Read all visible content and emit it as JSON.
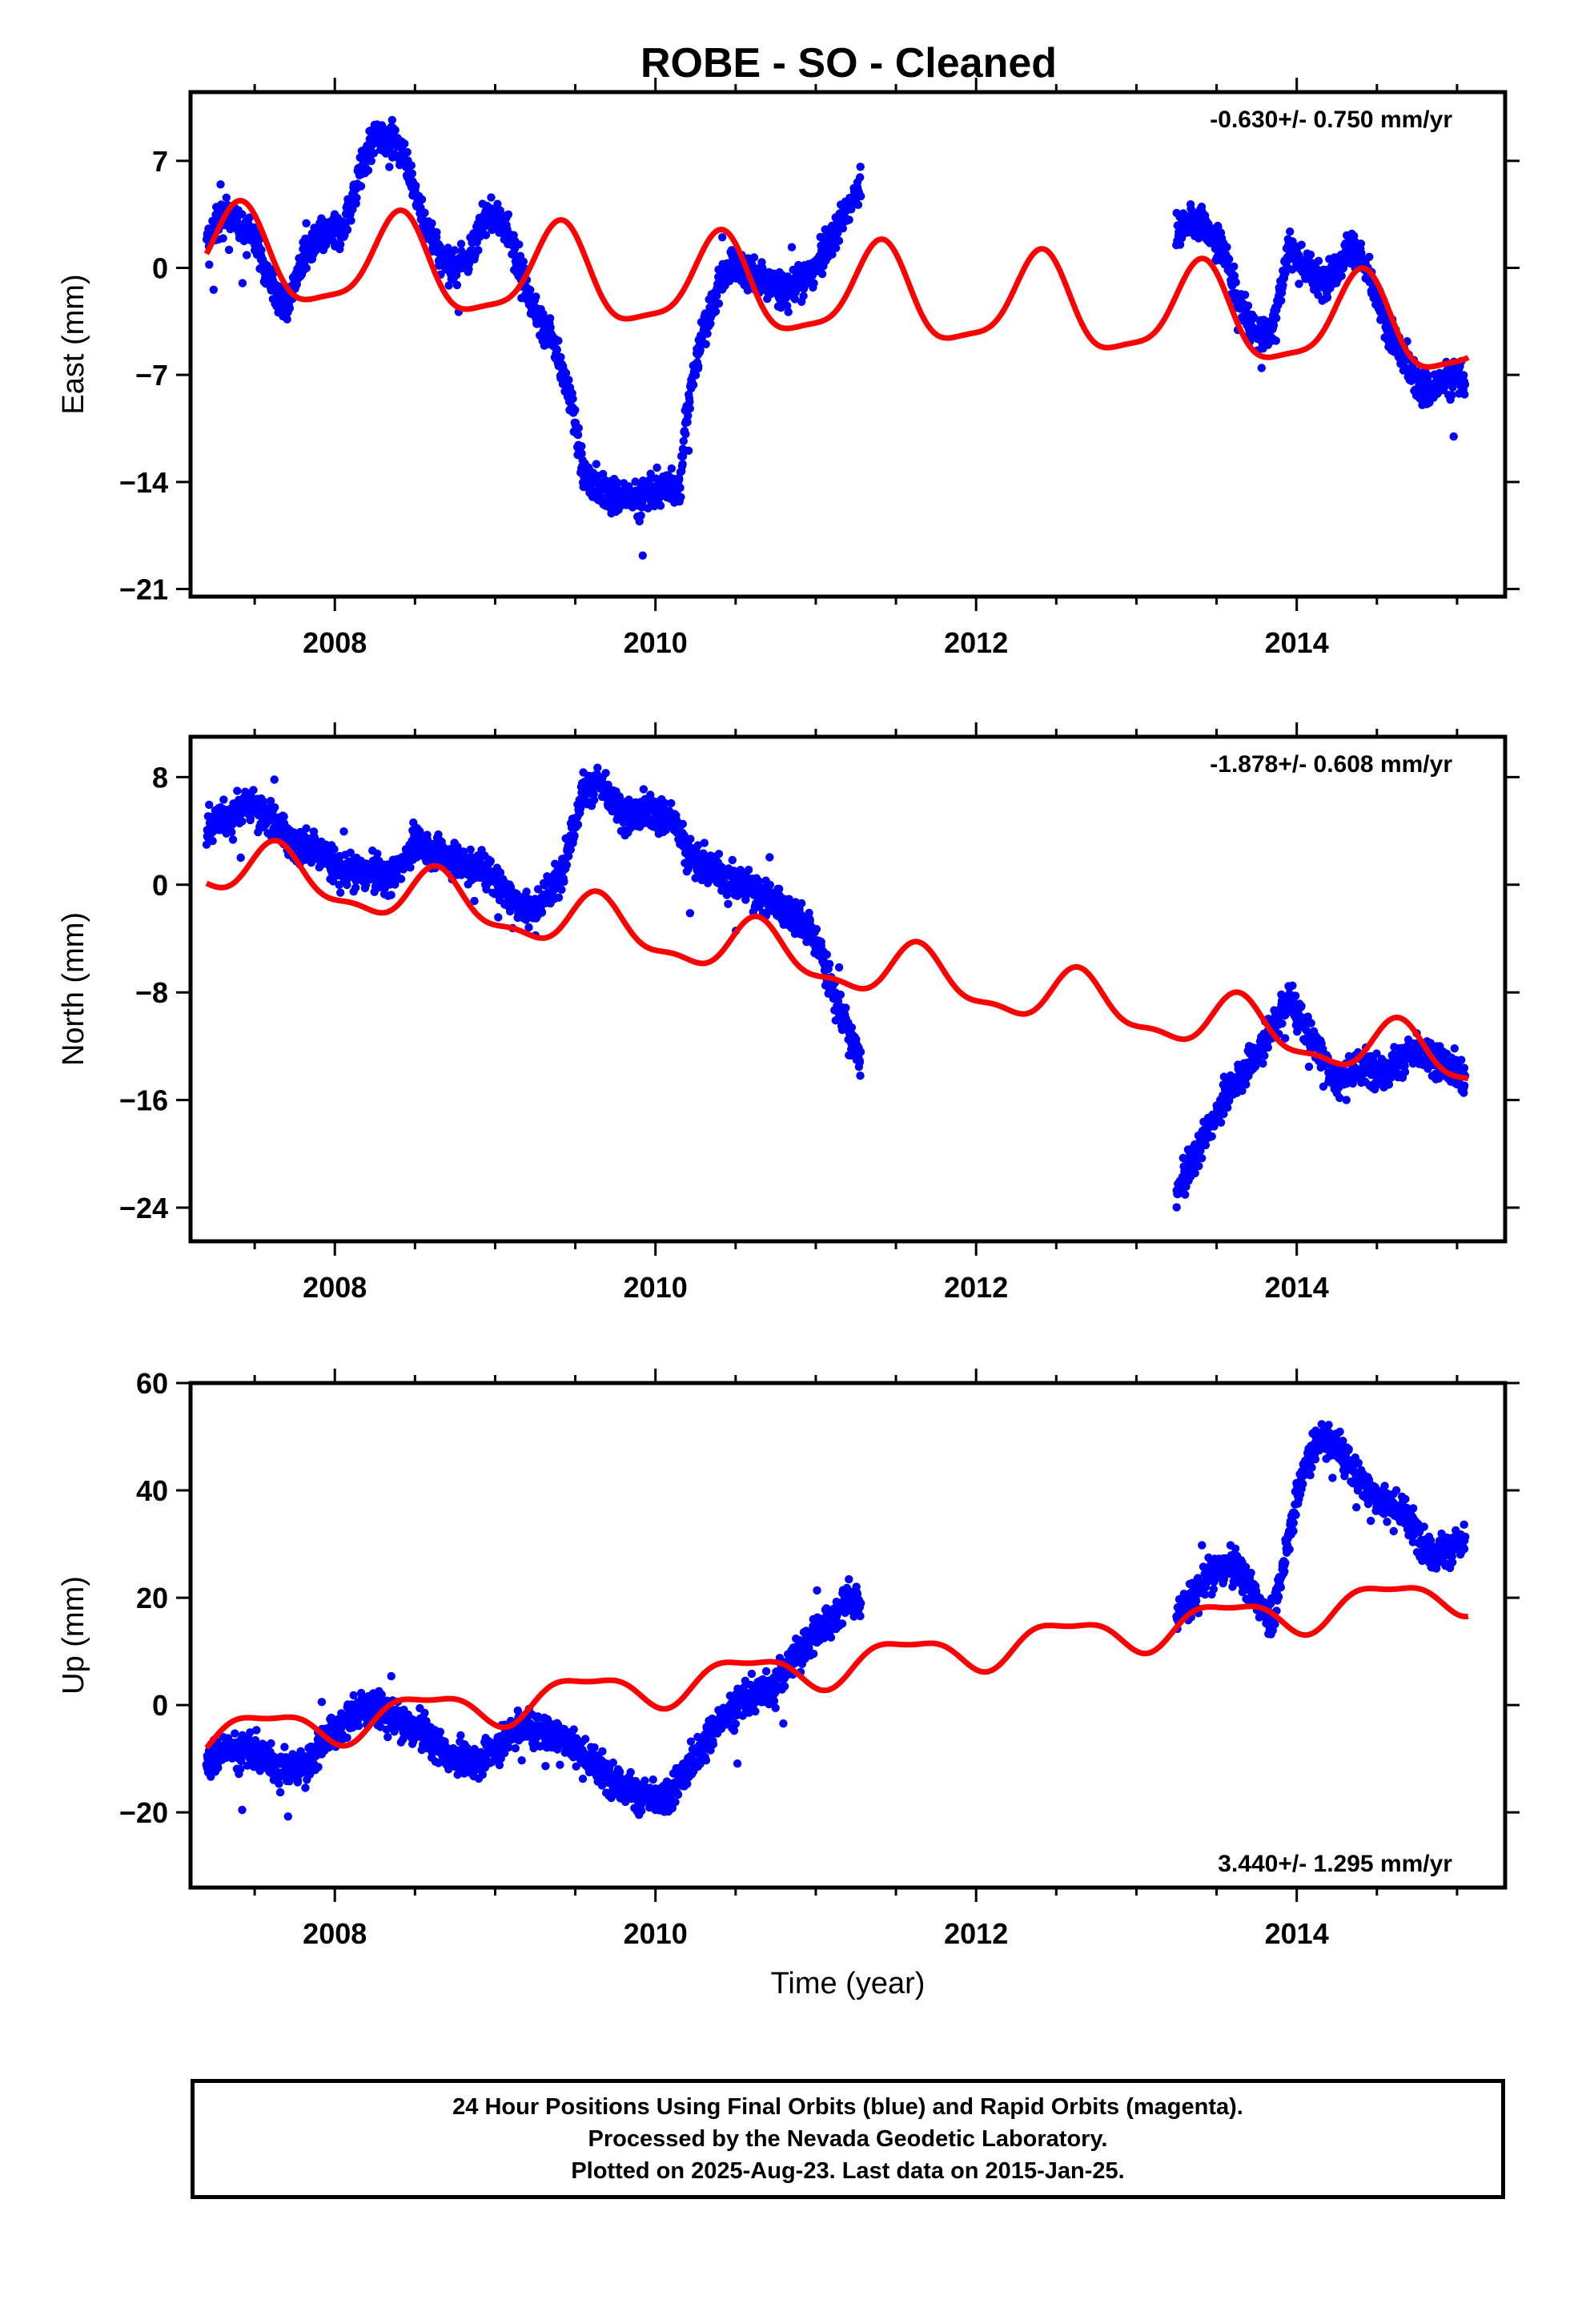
{
  "title": "ROBE  - SO - Cleaned",
  "colors": {
    "final_orbits": "#0000ff",
    "model": "#ff0000",
    "frame": "#000000"
  },
  "footer": {
    "line1": "24 Hour Positions Using Final Orbits (blue) and Rapid Orbits (magenta).",
    "line2": "Processed by the Nevada Geodetic Laboratory.",
    "line3": "Plotted on 2025-Aug-23. Last data on 2015-Jan-25."
  },
  "chart_data": [
    {
      "type": "scatter",
      "id": "east",
      "ylabel": "East (mm)",
      "xlabel": "",
      "rate_label": "-0.630+/- 0.750 mm/yr",
      "rate_position": "top-right",
      "xlim": [
        2007.1,
        2015.3
      ],
      "ylim": [
        -21.5,
        11.5
      ],
      "x_ticks": [
        2008,
        2010,
        2012,
        2014
      ],
      "x_minor_ticks": [
        2007.5,
        2008.5,
        2009,
        2009.5,
        2010.5,
        2011,
        2011.5,
        2012.5,
        2013,
        2013.5,
        2014.5,
        2015
      ],
      "y_ticks": [
        7,
        0,
        -7,
        -14,
        -21
      ],
      "data_segments": [
        {
          "x": [
            2007.2,
            2007.3,
            2007.5,
            2007.6,
            2007.7,
            2007.8,
            2007.9,
            2008.05,
            2008.15,
            2008.25,
            2008.35,
            2008.45,
            2008.55,
            2008.65,
            2008.75,
            2008.85,
            2008.95,
            2009.05,
            2009.15,
            2009.25,
            2009.35,
            2009.45,
            2009.5,
            2009.55,
            2009.65,
            2009.8,
            2009.9,
            2010.05,
            2010.15,
            2010.2,
            2010.3,
            2010.4,
            2010.5,
            2010.6,
            2010.7,
            2010.8,
            2010.9,
            2011.0,
            2011.1,
            2011.2,
            2011.28
          ],
          "y": [
            1.5,
            3.5,
            2.0,
            -1.0,
            -2.5,
            0.5,
            2.0,
            2.5,
            6.0,
            8.5,
            8.5,
            7.0,
            3.0,
            1.0,
            0.0,
            1.0,
            3.5,
            3.0,
            0.5,
            -3.0,
            -4.5,
            -8.0,
            -10.0,
            -13.5,
            -14.5,
            -15.0,
            -15.0,
            -14.5,
            -14.0,
            -9.0,
            -4.0,
            -1.0,
            0.5,
            -0.5,
            -1.0,
            -1.5,
            -1.0,
            0.0,
            2.0,
            4.0,
            5.5
          ]
        },
        {
          "x": [
            2013.25,
            2013.35,
            2013.45,
            2013.55,
            2013.65,
            2013.75,
            2013.85,
            2013.95,
            2014.05,
            2014.15,
            2014.25,
            2014.35,
            2014.45,
            2014.55,
            2014.65,
            2014.75,
            2014.85,
            2014.95,
            2015.05
          ],
          "y": [
            2.0,
            3.5,
            2.5,
            1.0,
            -2.5,
            -4.5,
            -4.0,
            1.5,
            0.0,
            -1.0,
            0.0,
            1.5,
            -0.5,
            -3.5,
            -5.5,
            -7.5,
            -8.0,
            -7.0,
            -7.5
          ]
        }
      ],
      "model": {
        "offset": -1.64,
        "trend": -0.63,
        "t0": 2011.0,
        "cycles": [
          {
            "amp": 3.0,
            "period": 1.0,
            "phase": 2007.15
          },
          {
            "amp": 0.8,
            "period": 0.5,
            "phase": 2007.3
          }
        ],
        "x_range": [
          2007.2,
          2015.07
        ]
      }
    },
    {
      "type": "scatter",
      "id": "north",
      "ylabel": "North (mm)",
      "xlabel": "",
      "rate_label": "-1.878+/- 0.608 mm/yr",
      "rate_position": "top-right",
      "xlim": [
        2007.1,
        2015.3
      ],
      "ylim": [
        -26.5,
        11
      ],
      "x_ticks": [
        2008,
        2010,
        2012,
        2014
      ],
      "x_minor_ticks": [
        2007.5,
        2008.5,
        2009,
        2009.5,
        2010.5,
        2011,
        2011.5,
        2012.5,
        2013,
        2013.5,
        2014.5,
        2015
      ],
      "y_ticks": [
        8,
        0,
        -8,
        -16,
        -24
      ],
      "data_segments": [
        {
          "x": [
            2007.2,
            2007.3,
            2007.45,
            2007.6,
            2007.75,
            2007.9,
            2008.05,
            2008.2,
            2008.35,
            2008.5,
            2008.65,
            2008.8,
            2008.95,
            2009.1,
            2009.25,
            2009.4,
            2009.55,
            2009.65,
            2009.8,
            2009.95,
            2010.1,
            2010.25,
            2010.4,
            2010.55,
            2010.7,
            2010.85,
            2011.0,
            2011.1,
            2011.2,
            2011.28
          ],
          "y": [
            4.0,
            5.0,
            6.0,
            5.0,
            3.0,
            2.5,
            1.0,
            1.0,
            0.5,
            3.0,
            2.5,
            1.5,
            1.0,
            -1.0,
            -2.0,
            0.5,
            7.0,
            7.5,
            5.0,
            5.5,
            5.0,
            1.5,
            1.0,
            0.0,
            -1.0,
            -2.0,
            -4.0,
            -7.5,
            -11.0,
            -13.0
          ]
        },
        {
          "x": [
            2013.25,
            2013.35,
            2013.45,
            2013.55,
            2013.65,
            2013.75,
            2013.85,
            2013.95,
            2014.05,
            2014.15,
            2014.25,
            2014.35,
            2014.45,
            2014.55,
            2014.65,
            2014.75,
            2014.85,
            2014.95,
            2015.05
          ],
          "y": [
            -23.0,
            -20.5,
            -18.0,
            -16.0,
            -14.0,
            -12.5,
            -10.5,
            -8.5,
            -10.5,
            -12.5,
            -14.5,
            -14.0,
            -13.5,
            -14.0,
            -13.0,
            -12.5,
            -13.0,
            -13.5,
            -14.5
          ]
        }
      ],
      "model": {
        "offset": -5.63,
        "trend": -1.878,
        "t0": 2011.0,
        "cycles": [
          {
            "amp": 1.9,
            "period": 1.0,
            "phase": 2007.4
          },
          {
            "amp": 0.7,
            "period": 0.5,
            "phase": 2007.5
          }
        ],
        "x_range": [
          2007.2,
          2015.07
        ]
      }
    },
    {
      "type": "scatter",
      "id": "up",
      "ylabel": "Up (mm)",
      "xlabel": "Time (year)",
      "rate_label": "3.440+/- 1.295 mm/yr",
      "rate_position": "bottom-right",
      "xlim": [
        2007.1,
        2015.3
      ],
      "ylim": [
        -34,
        60
      ],
      "x_ticks": [
        2008,
        2010,
        2012,
        2014
      ],
      "x_minor_ticks": [
        2007.5,
        2008.5,
        2009,
        2009.5,
        2010.5,
        2011,
        2011.5,
        2012.5,
        2013,
        2013.5,
        2014.5,
        2015
      ],
      "y_ticks": [
        60,
        40,
        20,
        0,
        -20
      ],
      "data_segments": [
        {
          "x": [
            2007.2,
            2007.35,
            2007.5,
            2007.65,
            2007.8,
            2007.95,
            2008.1,
            2008.25,
            2008.4,
            2008.55,
            2008.7,
            2008.85,
            2009.0,
            2009.15,
            2009.3,
            2009.45,
            2009.6,
            2009.75,
            2009.9,
            2010.05,
            2010.2,
            2010.35,
            2010.5,
            2010.65,
            2010.8,
            2010.95,
            2011.1,
            2011.2,
            2011.28
          ],
          "y": [
            -10.0,
            -8.0,
            -9.0,
            -11.0,
            -12.0,
            -6.0,
            -2.0,
            0.0,
            -3.0,
            -5.0,
            -9.0,
            -11.0,
            -8.0,
            -4.0,
            -5.0,
            -6.0,
            -11.0,
            -14.0,
            -17.0,
            -18.0,
            -12.0,
            -5.0,
            0.0,
            2.0,
            6.0,
            12.0,
            16.0,
            20.0,
            18.0
          ]
        },
        {
          "x": [
            2013.25,
            2013.35,
            2013.45,
            2013.55,
            2013.65,
            2013.75,
            2013.85,
            2013.95,
            2014.05,
            2014.15,
            2014.25,
            2014.35,
            2014.45,
            2014.55,
            2014.65,
            2014.75,
            2014.85,
            2014.95,
            2015.05
          ],
          "y": [
            17.0,
            20.0,
            24.0,
            26.0,
            25.0,
            20.0,
            15.0,
            32.0,
            45.0,
            50.0,
            48.0,
            44.0,
            40.0,
            38.0,
            36.0,
            32.0,
            28.0,
            29.0,
            30.0
          ]
        }
      ],
      "model": {
        "offset": 7.1,
        "trend": 3.44,
        "t0": 2011.0,
        "cycles": [
          {
            "amp": 3.4,
            "period": 1.0,
            "phase": 2007.3
          },
          {
            "amp": 1.2,
            "period": 0.5,
            "phase": 2007.2
          }
        ],
        "x_range": [
          2007.2,
          2015.07
        ]
      }
    }
  ]
}
